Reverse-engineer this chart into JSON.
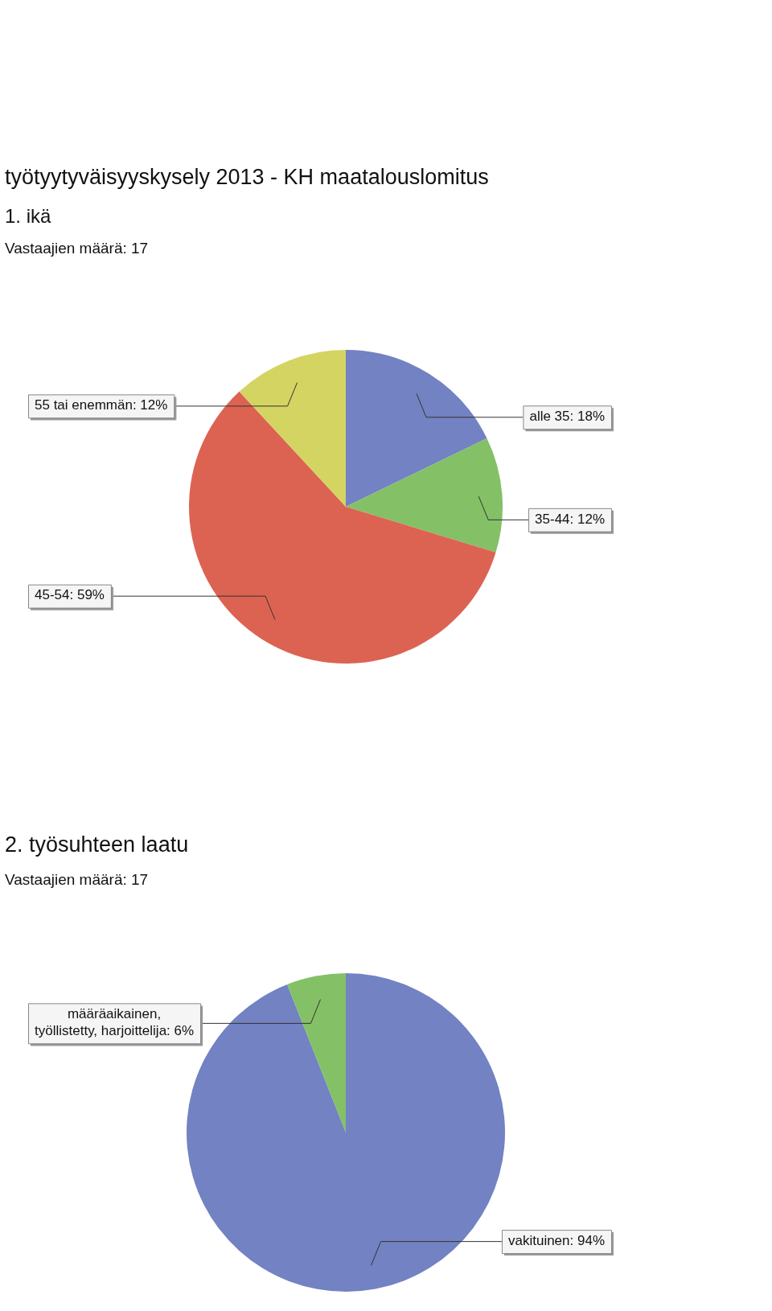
{
  "chart_data": [
    {
      "type": "pie",
      "title": "työtyytyväisyyskysely 2013 - KH maatalouslomitus",
      "subtitle": "1. ikä",
      "annotations": [
        "Vastaajien määrä: 17"
      ],
      "categories": [
        "alle 35",
        "35-44",
        "45-54",
        "55 tai enemmän"
      ],
      "values": [
        18,
        12,
        59,
        12
      ],
      "value_labels": [
        "18%",
        "12%",
        "59%",
        "12%"
      ],
      "colors": [
        "#7282c2",
        "#84c066",
        "#dc6352",
        "#d4d462"
      ]
    },
    {
      "type": "pie",
      "title": "2. työsuhteen laatu",
      "annotations": [
        "Vastaajien määrä: 17"
      ],
      "categories": [
        "vakituinen",
        "määräaikainen, työllistetty, harjoittelija"
      ],
      "values": [
        94,
        6
      ],
      "value_labels": [
        "94%",
        "6%"
      ],
      "colors": [
        "#7282c2",
        "#84c066"
      ]
    }
  ]
}
